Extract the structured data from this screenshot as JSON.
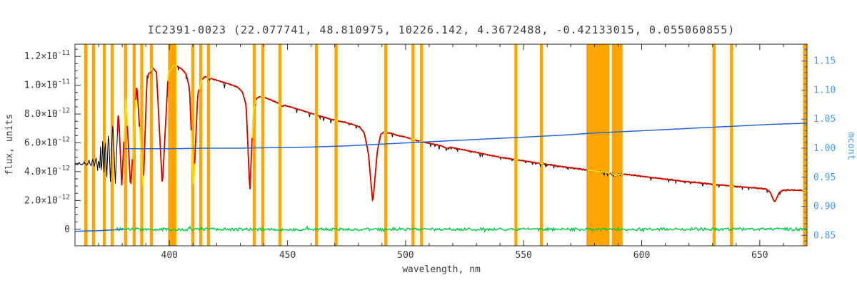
{
  "chart_data": {
    "type": "line",
    "title": "IC2391-0023  (22.077741, 48.810975, 10226.142, 4.3672488, -0.42133015, 0.055060855)",
    "xlabel": "wavelength, nm",
    "ylabel_left": "flux, units",
    "ylabel_right": "mcont",
    "flux_units_scale": 1e-12,
    "x_axis": {
      "lim": [
        360,
        670
      ],
      "major_ticks": [
        400,
        450,
        500,
        550,
        600,
        650
      ],
      "minor_step": 10
    },
    "flux_axis": {
      "lim": [
        -1.15,
        12.85
      ],
      "ticks": [
        {
          "v": 0,
          "label": "0"
        },
        {
          "v": 2,
          "label": "2.0×10^-12"
        },
        {
          "v": 4,
          "label": "4.0×10^-12"
        },
        {
          "v": 6,
          "label": "6.0×10^-12"
        },
        {
          "v": 8,
          "label": "8.0×10^-12"
        },
        {
          "v": 10,
          "label": "1.0×10^-11"
        },
        {
          "v": 12,
          "label": "1.2×10^-11"
        }
      ],
      "minor_step": 0.5
    },
    "mcont_axis": {
      "lim": [
        0.832,
        1.179
      ],
      "ticks": [
        {
          "v": 0.85,
          "label": "0.85"
        },
        {
          "v": 0.9,
          "label": "0.90"
        },
        {
          "v": 0.95,
          "label": "0.95"
        },
        {
          "v": 1.0,
          "label": "1.00"
        },
        {
          "v": 1.05,
          "label": "1.05"
        },
        {
          "v": 1.1,
          "label": "1.10"
        },
        {
          "v": 1.15,
          "label": "1.15"
        }
      ],
      "minor_step": 0.01
    },
    "masked_regions": {
      "color": "#ffa500",
      "bands": [
        [
          363.9,
          365.3
        ],
        [
          367.2,
          368.5
        ],
        [
          371.8,
          373.1
        ],
        [
          375.1,
          376.4
        ],
        [
          380.8,
          382.1
        ],
        [
          384.4,
          385.7
        ],
        [
          387.6,
          388.9
        ],
        [
          391.7,
          393.0
        ],
        [
          399.4,
          403.0
        ],
        [
          409.3,
          410.6
        ],
        [
          412.6,
          413.9
        ],
        [
          415.9,
          417.2
        ],
        [
          435.3,
          436.6
        ],
        [
          438.9,
          440.2
        ],
        [
          446.2,
          447.5
        ],
        [
          461.6,
          462.9
        ],
        [
          469.9,
          471.2
        ],
        [
          491.0,
          492.3
        ],
        [
          502.5,
          503.8
        ],
        [
          506.1,
          507.4
        ],
        [
          546.1,
          547.4
        ],
        [
          556.9,
          558.2
        ],
        [
          576.6,
          586.3
        ],
        [
          587.3,
          591.9
        ],
        [
          630.0,
          631.3
        ],
        [
          637.4,
          638.7
        ],
        [
          668.3,
          670.0
        ]
      ]
    },
    "series": [
      {
        "name": "observed_spectrum",
        "color": "#000000",
        "x_start": 360,
        "noise_amplitude": 0.12,
        "points": [
          [
            360,
            4.55
          ],
          [
            361,
            4.5
          ],
          [
            362,
            4.62
          ],
          [
            363,
            4.45
          ],
          [
            364,
            4.65
          ],
          [
            365,
            4.45
          ],
          [
            366,
            4.75
          ],
          [
            366.8,
            4.3
          ],
          [
            367.5,
            4.9
          ],
          [
            368.2,
            4.25
          ],
          [
            368.9,
            5.1
          ],
          [
            369.7,
            3.9
          ],
          [
            370.05,
            5.35
          ],
          [
            370.4,
            3.8
          ],
          [
            370.8,
            5.7
          ],
          [
            371.2,
            3.6
          ],
          [
            371.7,
            6.1
          ],
          [
            372.2,
            3.5
          ],
          [
            372.8,
            6.5
          ],
          [
            373.45,
            3.4
          ],
          [
            374.2,
            7.0
          ],
          [
            375,
            3.3
          ],
          [
            376,
            7.6
          ],
          [
            377.1,
            3.2
          ],
          [
            378.4,
            8.3
          ],
          [
            379.8,
            3.05
          ],
          [
            381.6,
            9.1
          ],
          [
            383.55,
            2.8
          ],
          [
            386.2,
            10.1
          ],
          [
            388.9,
            2.75
          ],
          [
            390.5,
            10.6
          ],
          [
            392.8,
            11.25
          ],
          [
            394.5,
            10.9
          ],
          [
            397,
            3.0
          ],
          [
            399.5,
            10.9
          ],
          [
            402,
            11.4
          ],
          [
            403.5,
            11.3
          ],
          [
            405,
            11.15
          ],
          [
            407,
            10.8
          ],
          [
            408.5,
            9.8
          ],
          [
            410.2,
            2.7
          ],
          [
            412,
            9.4
          ],
          [
            413.5,
            10.3
          ],
          [
            415,
            10.6
          ],
          [
            417,
            10.5
          ],
          [
            420,
            10.35
          ],
          [
            423,
            10.2
          ],
          [
            426,
            10.05
          ],
          [
            429,
            9.85
          ],
          [
            431,
            9.5
          ],
          [
            432.5,
            8.6
          ],
          [
            434.05,
            2.6
          ],
          [
            435.5,
            8.3
          ],
          [
            437,
            9.1
          ],
          [
            439,
            9.25
          ],
          [
            441,
            9.1
          ],
          [
            444,
            8.9
          ],
          [
            446,
            8.75
          ],
          [
            447.2,
            8.45
          ],
          [
            448.5,
            8.6
          ],
          [
            451,
            8.5
          ],
          [
            454,
            8.35
          ],
          [
            457,
            8.2
          ],
          [
            460,
            8.05
          ],
          [
            463,
            7.9
          ],
          [
            466,
            7.75
          ],
          [
            469,
            7.6
          ],
          [
            472,
            7.5
          ],
          [
            475,
            7.4
          ],
          [
            478,
            7.25
          ],
          [
            480.5,
            7.1
          ],
          [
            482.5,
            6.7
          ],
          [
            484.3,
            5.2
          ],
          [
            486.13,
            1.8
          ],
          [
            488,
            5.4
          ],
          [
            489.5,
            6.6
          ],
          [
            491,
            6.75
          ],
          [
            494,
            6.65
          ],
          [
            497,
            6.5
          ],
          [
            500,
            6.4
          ],
          [
            503,
            6.25
          ],
          [
            506,
            6.1
          ],
          [
            509,
            6.0
          ],
          [
            512,
            5.9
          ],
          [
            515,
            5.8
          ],
          [
            517.5,
            5.6
          ],
          [
            519,
            5.7
          ],
          [
            522,
            5.6
          ],
          [
            525,
            5.5
          ],
          [
            528,
            5.4
          ],
          [
            531,
            5.3
          ],
          [
            534,
            5.2
          ],
          [
            537,
            5.1
          ],
          [
            540,
            5.0
          ],
          [
            543,
            4.92
          ],
          [
            546,
            4.85
          ],
          [
            549,
            4.78
          ],
          [
            552,
            4.7
          ],
          [
            555,
            4.62
          ],
          [
            558,
            4.55
          ],
          [
            561,
            4.48
          ],
          [
            564,
            4.4
          ],
          [
            567,
            4.33
          ],
          [
            570,
            4.27
          ],
          [
            573,
            4.2
          ],
          [
            576,
            4.13
          ],
          [
            579,
            4.07
          ],
          [
            582,
            4.0
          ],
          [
            585,
            3.95
          ],
          [
            587.5,
            3.85
          ],
          [
            589,
            3.72
          ],
          [
            590.5,
            3.82
          ],
          [
            593,
            3.82
          ],
          [
            596,
            3.76
          ],
          [
            599,
            3.7
          ],
          [
            602,
            3.64
          ],
          [
            605,
            3.58
          ],
          [
            608,
            3.52
          ],
          [
            611,
            3.46
          ],
          [
            614,
            3.4
          ],
          [
            617,
            3.34
          ],
          [
            620,
            3.29
          ],
          [
            623,
            3.24
          ],
          [
            626,
            3.19
          ],
          [
            629,
            3.14
          ],
          [
            632,
            3.09
          ],
          [
            635,
            3.05
          ],
          [
            638,
            3.0
          ],
          [
            641,
            2.96
          ],
          [
            644,
            2.92
          ],
          [
            647,
            2.88
          ],
          [
            650,
            2.84
          ],
          [
            652.5,
            2.8
          ],
          [
            654.5,
            2.55
          ],
          [
            655.6,
            2.1
          ],
          [
            656.3,
            1.9
          ],
          [
            657,
            2.1
          ],
          [
            658.2,
            2.55
          ],
          [
            660,
            2.72
          ],
          [
            663,
            2.72
          ],
          [
            666,
            2.7
          ],
          [
            670,
            2.68
          ]
        ]
      },
      {
        "name": "model_fit",
        "color": "#dc0000",
        "under_color": "#ffe100",
        "x_start": 378,
        "note": "same shape as observed spectrum; red drawn only outside masked bands, yellow drawn everywhere"
      },
      {
        "name": "residual",
        "color": "#00cc44",
        "mean": 0,
        "noise_amplitude": 0.2,
        "x_start": 377.5
      },
      {
        "name": "mcont",
        "color": "#2565cf",
        "pre_points": [
          [
            360,
            0.857
          ],
          [
            370,
            0.858
          ],
          [
            378,
            0.86
          ],
          [
            380.5,
            0.861
          ]
        ],
        "points": [
          [
            381,
            0.999
          ],
          [
            400,
            0.999
          ],
          [
            415,
            1.0
          ],
          [
            430,
            1.0
          ],
          [
            445,
            1.001
          ],
          [
            460,
            1.002
          ],
          [
            475,
            1.004
          ],
          [
            490,
            1.007
          ],
          [
            505,
            1.01
          ],
          [
            520,
            1.013
          ],
          [
            535,
            1.016
          ],
          [
            550,
            1.019
          ],
          [
            565,
            1.022
          ],
          [
            580,
            1.026
          ],
          [
            595,
            1.029
          ],
          [
            610,
            1.032
          ],
          [
            625,
            1.035
          ],
          [
            640,
            1.038
          ],
          [
            655,
            1.041
          ],
          [
            670,
            1.043
          ]
        ]
      }
    ],
    "legend": "none",
    "grid": "off"
  },
  "colors": {
    "background": "#ffffff",
    "frame": "#2b2b2b",
    "text": "#3a3a3a",
    "right_axis_text": "#4f9bea",
    "mask_band": "#ffa500",
    "observed": "#000000",
    "fit_red": "#dc0000",
    "fit_yellow": "#ffe100",
    "residual_green": "#00cc44",
    "mcont_blue": "#2565cf"
  }
}
